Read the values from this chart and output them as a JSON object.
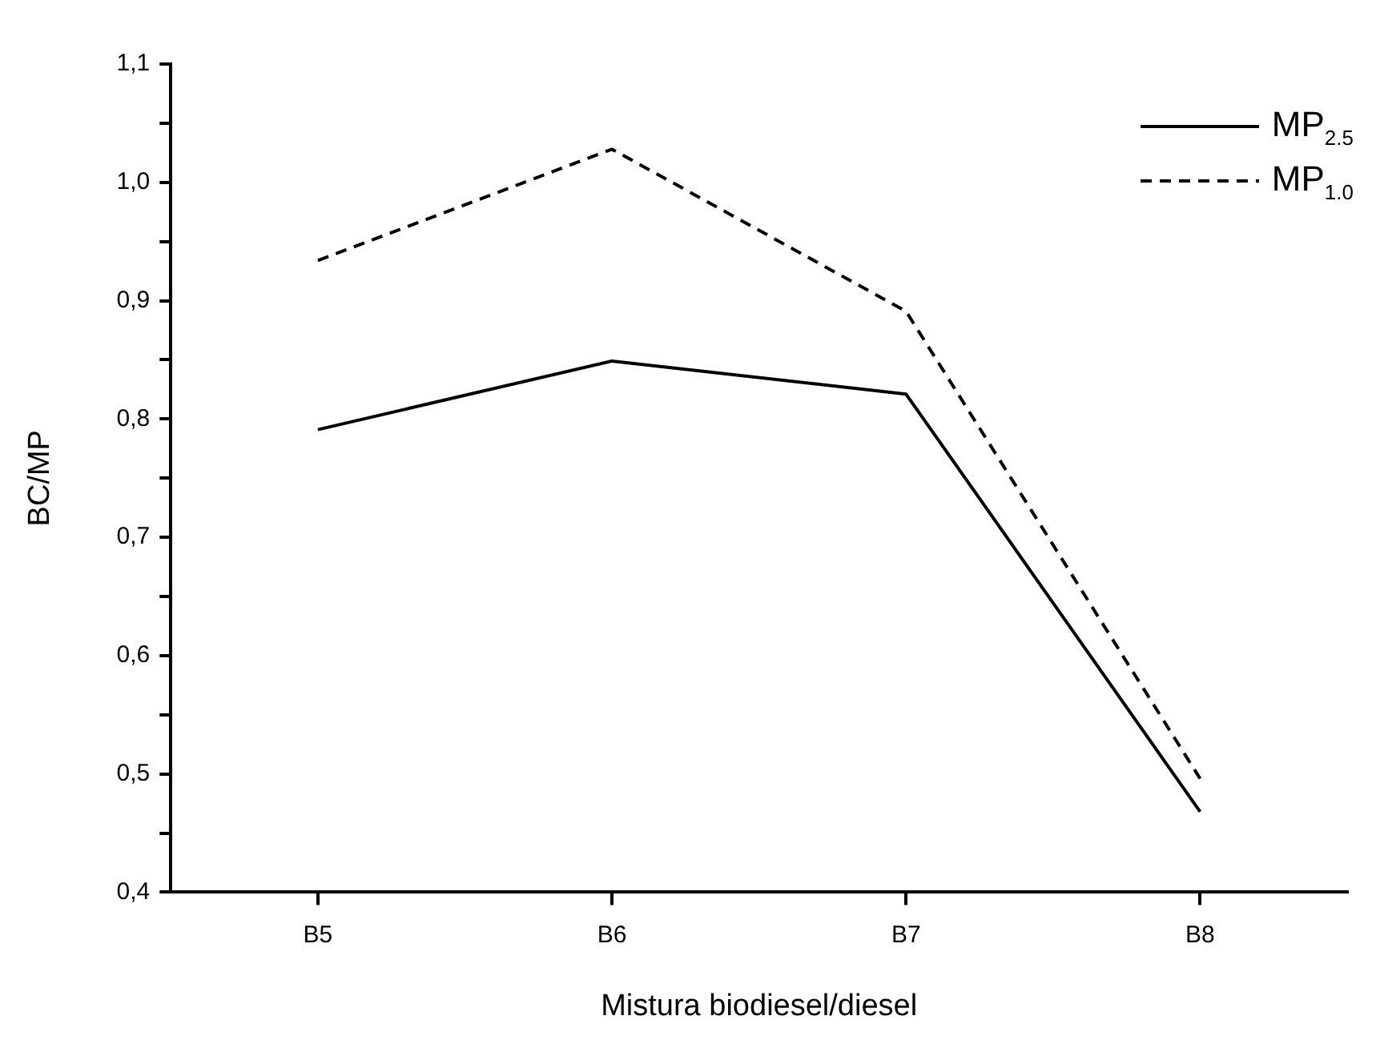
{
  "chart_data": {
    "type": "line",
    "xlabel": "Mistura biodiesel/diesel",
    "ylabel": "BC/MP",
    "categories": [
      "B5",
      "B6",
      "B7",
      "B8"
    ],
    "series": [
      {
        "name": "MP$_{2.5}$",
        "color": "#000000",
        "line_style": "solid",
        "values": [
          0.791,
          0.849,
          0.821,
          0.468
        ]
      },
      {
        "name": "MP$_{1.0}$",
        "color": "#000000",
        "line_style": "dashed",
        "values": [
          0.934,
          1.028,
          0.891,
          0.496
        ]
      }
    ],
    "ylim": [
      0.4,
      1.1
    ],
    "yticks": [
      {
        "value": 0.4,
        "label": "0,4"
      },
      {
        "value": 0.45,
        "label": null
      },
      {
        "value": 0.5,
        "label": "0,5"
      },
      {
        "value": 0.55,
        "label": null
      },
      {
        "value": 0.6,
        "label": "0,6"
      },
      {
        "value": 0.65,
        "label": null
      },
      {
        "value": 0.7,
        "label": "0,7"
      },
      {
        "value": 0.75,
        "label": null
      },
      {
        "value": 0.8,
        "label": "0,8"
      },
      {
        "value": 0.85,
        "label": null
      },
      {
        "value": 0.9,
        "label": "0,9"
      },
      {
        "value": 0.95,
        "label": null
      },
      {
        "value": 1.0,
        "label": "1,0"
      },
      {
        "value": 1.05,
        "label": null
      },
      {
        "value": 1.1,
        "label": "1,1"
      }
    ],
    "marker": "none",
    "legend": "top right"
  }
}
